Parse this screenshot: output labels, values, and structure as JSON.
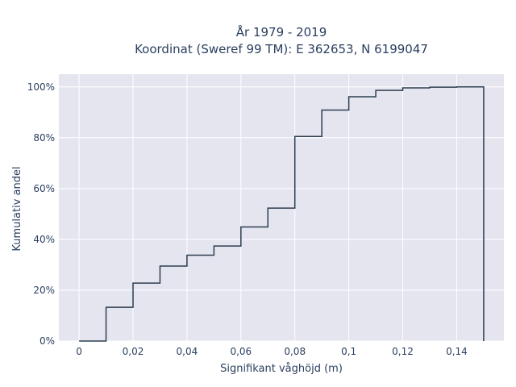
{
  "chart_data": {
    "type": "line",
    "step": "hv",
    "title_lines": [
      "År 1979 - 2019",
      "Koordinat (Sweref 99 TM): E 362653, N 6199047"
    ],
    "xlabel": "Signifikant våghöjd (m)",
    "ylabel": "Kumulativ andel",
    "xlim": [
      -0.0075,
      0.1575
    ],
    "ylim": [
      0,
      1.05
    ],
    "x_ticks": [
      0,
      0.02,
      0.04,
      0.06,
      0.08,
      0.1,
      0.12,
      0.14
    ],
    "x_tick_labels": [
      "0",
      "0,02",
      "0,04",
      "0,06",
      "0,08",
      "0,1",
      "0,12",
      "0,14"
    ],
    "y_ticks": [
      0,
      0.2,
      0.4,
      0.6,
      0.8,
      1.0
    ],
    "y_tick_labels": [
      "0%",
      "20%",
      "40%",
      "60%",
      "80%",
      "100%"
    ],
    "grid": true,
    "colors": {
      "plot_bg": "#e5e5f0",
      "grid": "#ffffff",
      "line": "#2d3e50",
      "text": "#2a3f5f"
    },
    "series": [
      {
        "x": [
          0,
          0.01,
          0.02,
          0.03,
          0.04,
          0.05,
          0.06,
          0.07,
          0.08,
          0.09,
          0.1,
          0.11,
          0.12,
          0.13,
          0.14,
          0.15,
          0.15
        ],
        "y": [
          0,
          0.133,
          0.228,
          0.295,
          0.338,
          0.374,
          0.449,
          0.523,
          0.805,
          0.909,
          0.961,
          0.986,
          0.996,
          0.999,
          1.0,
          1.0,
          0
        ]
      }
    ]
  }
}
